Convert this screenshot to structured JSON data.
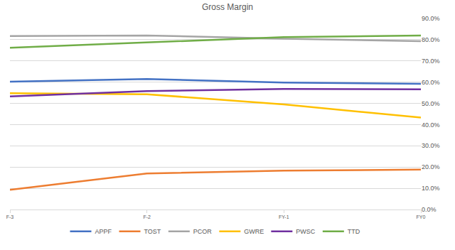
{
  "chart_data": {
    "type": "line",
    "title": "Gross Margin",
    "categories": [
      "F-3",
      "F-2",
      "FY-1",
      "FY0"
    ],
    "series": [
      {
        "name": "APPF",
        "color": "#4472c4",
        "values": [
          60.2,
          61.5,
          59.8,
          59.2
        ]
      },
      {
        "name": "TOST",
        "color": "#ed7d31",
        "values": [
          9.3,
          17.0,
          18.3,
          18.8
        ]
      },
      {
        "name": "PCOR",
        "color": "#a5a5a5",
        "values": [
          81.7,
          82.0,
          80.5,
          79.3
        ]
      },
      {
        "name": "GWRE",
        "color": "#ffc000",
        "values": [
          54.8,
          54.3,
          49.5,
          43.3
        ]
      },
      {
        "name": "PWSC",
        "color": "#7030a0",
        "values": [
          53.3,
          55.8,
          56.8,
          56.6
        ]
      },
      {
        "name": "TTD",
        "color": "#70ad47",
        "values": [
          76.2,
          78.6,
          81.2,
          82.0
        ]
      }
    ],
    "ylim": [
      0,
      90
    ],
    "yticks": [
      {
        "value": 0,
        "label": "0.0%"
      },
      {
        "value": 10,
        "label": "10.0%"
      },
      {
        "value": 20,
        "label": "20.0%"
      },
      {
        "value": 30,
        "label": "30.0%"
      },
      {
        "value": 40,
        "label": "40.0%"
      },
      {
        "value": 50,
        "label": "50.0%"
      },
      {
        "value": 60,
        "label": "60.0%"
      },
      {
        "value": 70,
        "label": "70.0%"
      },
      {
        "value": 80,
        "label": "80.0%"
      },
      {
        "value": 90,
        "label": "90.0%"
      }
    ],
    "grid": true,
    "legend": "bottom"
  }
}
